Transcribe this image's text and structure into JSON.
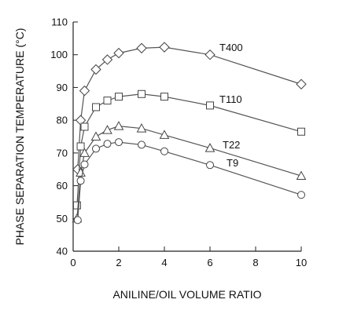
{
  "chart_data": {
    "type": "line",
    "xlabel": "ANILINE/OIL VOLUME RATIO",
    "ylabel": "PHASE SEPARATION TEMPERATURE (°C)",
    "xlim": [
      0,
      10
    ],
    "ylim": [
      40,
      110
    ],
    "x_ticks": [
      0,
      2,
      4,
      6,
      8,
      10
    ],
    "y_ticks": [
      40,
      50,
      60,
      70,
      80,
      90,
      100,
      110
    ],
    "grid": false,
    "legend": "inline labels at right end of each series",
    "series": [
      {
        "name": "T400",
        "marker": "diamond",
        "x": [
          0.2,
          0.33,
          0.5,
          1,
          1.5,
          2,
          3,
          4,
          6,
          10
        ],
        "y": [
          65,
          80,
          89,
          95.5,
          98.5,
          100.5,
          102,
          102.3,
          100,
          91
        ]
      },
      {
        "name": "T110",
        "marker": "square",
        "x": [
          0.17,
          0.33,
          0.5,
          1,
          1.5,
          2,
          3,
          4,
          6,
          10
        ],
        "y": [
          54,
          72,
          78,
          84,
          86,
          87.2,
          88,
          87.2,
          84.5,
          76.5
        ]
      },
      {
        "name": "T22",
        "marker": "triangle",
        "x": [
          0.17,
          0.33,
          0.5,
          1,
          1.5,
          2,
          3,
          4,
          6,
          10
        ],
        "y": [
          50,
          64,
          70,
          75,
          77,
          78.2,
          77.5,
          75.5,
          71.5,
          63
        ]
      },
      {
        "name": "T9",
        "marker": "circle",
        "x": [
          0.2,
          0.33,
          0.5,
          1,
          1.5,
          2,
          3,
          4,
          6,
          10
        ],
        "y": [
          49.5,
          61.5,
          66.5,
          71.3,
          72.8,
          73.3,
          72.5,
          70.5,
          66.3,
          57.2
        ]
      }
    ]
  }
}
